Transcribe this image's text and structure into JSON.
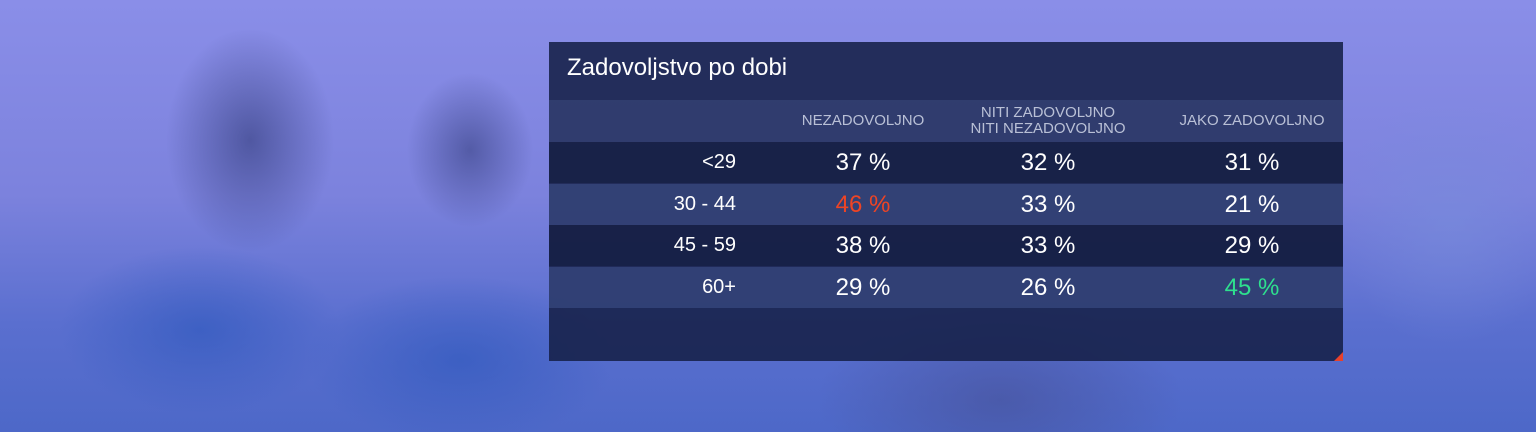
{
  "table": {
    "title": "Zadovoljstvo po dobi",
    "columns": [
      [
        "NEZADOVOLJNO"
      ],
      [
        "NITI ZADOVOLJNO",
        "NITI NEZADOVOLJNO"
      ],
      [
        "JAKO ZADOVOLJNO"
      ]
    ],
    "rows": [
      {
        "label": "<29",
        "cells": [
          "37 %",
          "32 %",
          "31 %"
        ]
      },
      {
        "label": "30 - 44",
        "cells": [
          {
            "text": "46 %",
            "color": "#ee4424"
          },
          "33 %",
          "21 %"
        ]
      },
      {
        "label": "45 - 59",
        "cells": [
          "38 %",
          "33 %",
          "29 %"
        ]
      },
      {
        "label": "60+",
        "cells": [
          "29 %",
          "26 %",
          {
            "text": "45 %",
            "color": "#2ee08e"
          }
        ]
      }
    ]
  }
}
